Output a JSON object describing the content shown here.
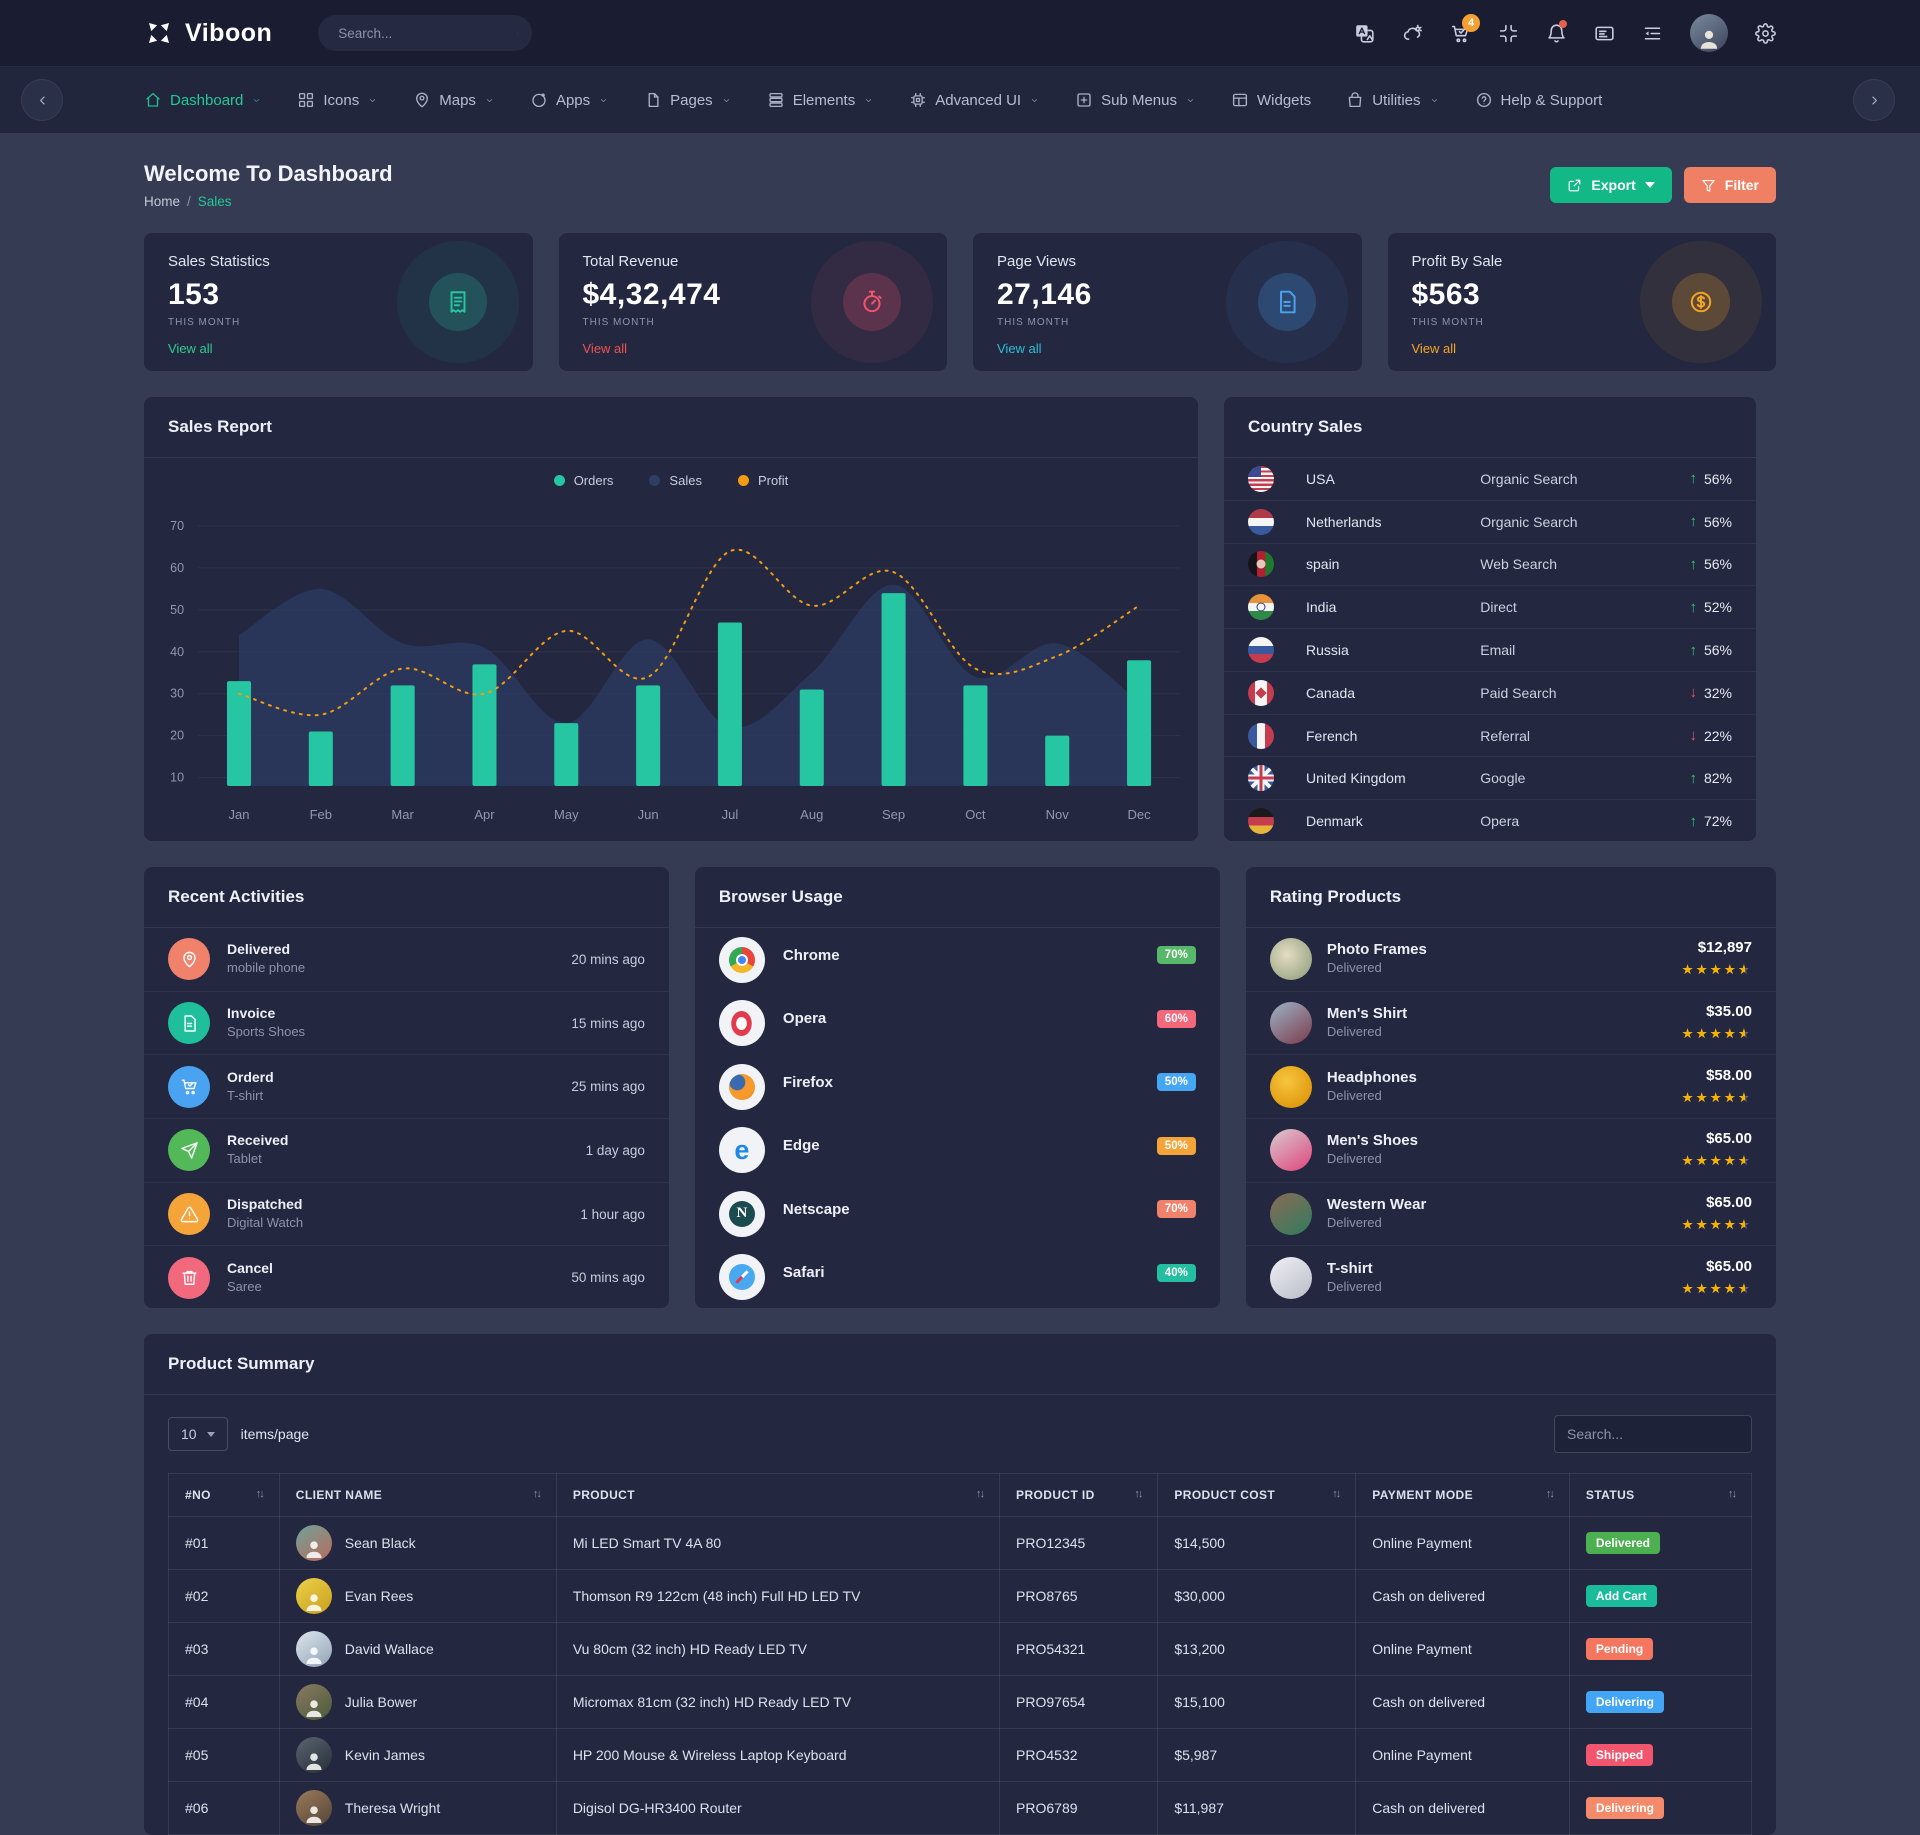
{
  "theme": {
    "up": "#2ecc71",
    "down": "#ef5565"
  },
  "topbar": {
    "brand": "Viboon",
    "search_placeholder": "Search...",
    "cart_badge": "4",
    "icons": [
      "translate-icon",
      "weather-icon",
      "cart-icon",
      "minimize-icon",
      "bell-icon",
      "card-icon",
      "list-icon",
      "avatar",
      "settings-icon"
    ]
  },
  "nav": {
    "items": [
      {
        "label": "Dashboard",
        "icon": "home-icon",
        "active": true,
        "caret": true
      },
      {
        "label": "Icons",
        "icon": "grid-icon",
        "active": false,
        "caret": true
      },
      {
        "label": "Maps",
        "icon": "map-pin-icon",
        "active": false,
        "caret": true
      },
      {
        "label": "Apps",
        "icon": "apps-icon",
        "active": false,
        "caret": true
      },
      {
        "label": "Pages",
        "icon": "pages-icon",
        "active": false,
        "caret": true
      },
      {
        "label": "Elements",
        "icon": "elements-icon",
        "active": false,
        "caret": true
      },
      {
        "label": "Advanced UI",
        "icon": "cpu-icon",
        "active": false,
        "caret": true
      },
      {
        "label": "Sub Menus",
        "icon": "plus-square-icon",
        "active": false,
        "caret": true
      },
      {
        "label": "Widgets",
        "icon": "widgets-icon",
        "active": false,
        "caret": false
      },
      {
        "label": "Utilities",
        "icon": "bag-icon",
        "active": false,
        "caret": true
      },
      {
        "label": "Help & Support",
        "icon": "help-icon",
        "active": false,
        "caret": false
      }
    ]
  },
  "page_header": {
    "title": "Welcome To Dashboard",
    "breadcrumb_home": "Home",
    "breadcrumb_sep": "/",
    "breadcrumb_current": "Sales",
    "export_label": "Export",
    "filter_label": "Filter"
  },
  "stats": [
    {
      "title": "Sales Statistics",
      "value": "153",
      "period": "THIS MONTH",
      "link": "View all",
      "accent": "#26c6a2",
      "link_color": "#2ecc8f",
      "icon": "receipt-icon"
    },
    {
      "title": "Total Revenue",
      "value": "$4,32,474",
      "period": "THIS MONTH",
      "link": "View all",
      "accent": "#f2566e",
      "link_color": "#ef5350",
      "icon": "stopwatch-icon"
    },
    {
      "title": "Page Views",
      "value": "27,146",
      "period": "THIS MONTH",
      "link": "View all",
      "accent": "#4aa3f0",
      "link_color": "#29c0d8",
      "icon": "file-icon"
    },
    {
      "title": "Profit By Sale",
      "value": "$563",
      "period": "THIS MONTH",
      "link": "View all",
      "accent": "#f5a623",
      "link_color": "#f5a623",
      "icon": "dollar-icon"
    }
  ],
  "chart_data": {
    "type": "bar+area+line",
    "title": "Sales Report",
    "categories": [
      "Jan",
      "Feb",
      "Mar",
      "Apr",
      "May",
      "Jun",
      "Jul",
      "Aug",
      "Sep",
      "Oct",
      "Nov",
      "Dec"
    ],
    "series": [
      {
        "name": "Orders",
        "type": "bar",
        "color": "#26c6a2",
        "values": [
          33,
          21,
          32,
          37,
          23,
          32,
          47,
          31,
          54,
          32,
          20,
          38
        ]
      },
      {
        "name": "Sales",
        "type": "area",
        "color": "#2b3a5e",
        "values": [
          44,
          55,
          42,
          41,
          23,
          43,
          22,
          35,
          56,
          34,
          42,
          28
        ]
      },
      {
        "name": "Profit",
        "type": "line",
        "color": "#f39c12",
        "dashed": true,
        "values": [
          30,
          25,
          36,
          30,
          45,
          34,
          64,
          51,
          59,
          36,
          39,
          51
        ]
      }
    ],
    "ylim": [
      10,
      70
    ],
    "yticks": [
      10,
      20,
      30,
      40,
      50,
      60,
      70
    ],
    "grid": true,
    "legend_position": "top"
  },
  "country_sales": {
    "title": "Country Sales",
    "rows": [
      {
        "country": "USA",
        "flag": "usa",
        "source": "Organic Search",
        "trend": "up",
        "percent": "56%"
      },
      {
        "country": "Netherlands",
        "flag": "netherlands",
        "source": "Organic Search",
        "trend": "up",
        "percent": "56%"
      },
      {
        "country": "spain",
        "flag": "spain",
        "source": "Web Search",
        "trend": "up",
        "percent": "56%"
      },
      {
        "country": "India",
        "flag": "india",
        "source": "Direct",
        "trend": "up",
        "percent": "52%"
      },
      {
        "country": "Russia",
        "flag": "russia",
        "source": "Email",
        "trend": "up",
        "percent": "56%"
      },
      {
        "country": "Canada",
        "flag": "canada",
        "source": "Paid Search",
        "trend": "down",
        "percent": "32%"
      },
      {
        "country": "Ferench",
        "flag": "france",
        "source": "Referral",
        "trend": "down",
        "percent": "22%"
      },
      {
        "country": "United Kingdom",
        "flag": "uk",
        "source": "Google",
        "trend": "up",
        "percent": "82%"
      },
      {
        "country": "Denmark",
        "flag": "denmark",
        "source": "Opera",
        "trend": "up",
        "percent": "72%"
      }
    ]
  },
  "recent_activities": {
    "title": "Recent Activities",
    "items": [
      {
        "title": "Delivered",
        "subtitle": "mobile phone",
        "time": "20 mins ago",
        "icon": "map-pin-icon",
        "color": "#f0826c"
      },
      {
        "title": "Invoice",
        "subtitle": "Sports Shoes",
        "time": "15 mins ago",
        "icon": "file-icon",
        "color": "#1fbf9c"
      },
      {
        "title": "Orderd",
        "subtitle": "T-shirt",
        "time": "25 mins ago",
        "icon": "cart-icon",
        "color": "#4aa3f0"
      },
      {
        "title": "Received",
        "subtitle": "Tablet",
        "time": "1 day ago",
        "icon": "send-icon",
        "color": "#53b858"
      },
      {
        "title": "Dispatched",
        "subtitle": "Digital Watch",
        "time": "1 hour ago",
        "icon": "alert-triangle-icon",
        "color": "#f5a43a"
      },
      {
        "title": "Cancel",
        "subtitle": "Saree",
        "time": "50 mins ago",
        "icon": "trash-icon",
        "color": "#f2697e"
      }
    ]
  },
  "browser_usage": {
    "title": "Browser Usage",
    "items": [
      {
        "name": "Chrome",
        "percent": 70,
        "color": "#56b868"
      },
      {
        "name": "Opera",
        "percent": 60,
        "color": "#f4687c"
      },
      {
        "name": "Firefox",
        "percent": 50,
        "color": "#45a6f4"
      },
      {
        "name": "Edge",
        "percent": 50,
        "color": "#f5a43a"
      },
      {
        "name": "Netscape",
        "percent": 70,
        "color": "#f0826c"
      },
      {
        "name": "Safari",
        "percent": 40,
        "color": "#24bfa0"
      }
    ]
  },
  "rating_products": {
    "title": "Rating Products",
    "items": [
      {
        "name": "Photo Frames",
        "status": "Delivered",
        "price": "$12,897",
        "rating": 4.5
      },
      {
        "name": "Men's Shirt",
        "status": "Delivered",
        "price": "$35.00",
        "rating": 4.5
      },
      {
        "name": "Headphones",
        "status": "Delivered",
        "price": "$58.00",
        "rating": 4.5
      },
      {
        "name": "Men's Shoes",
        "status": "Delivered",
        "price": "$65.00",
        "rating": 4.5
      },
      {
        "name": "Western Wear",
        "status": "Delivered",
        "price": "$65.00",
        "rating": 4.5
      },
      {
        "name": "T-shirt",
        "status": "Delivered",
        "price": "$65.00",
        "rating": 4.5
      }
    ]
  },
  "product_summary": {
    "title": "Product Summary",
    "items_per_page": "10",
    "items_label": "items/page",
    "search_placeholder": "Search...",
    "columns": [
      "#NO",
      "CLIENT NAME",
      "PRODUCT",
      "PRODUCT ID",
      "PRODUCT COST",
      "PAYMENT MODE",
      "STATUS"
    ],
    "rows": [
      {
        "no": "#01",
        "client": "Sean Black",
        "product": "Mi LED Smart TV 4A 80",
        "product_id": "PRO12345",
        "cost": "$14,500",
        "payment": "Online Payment",
        "status": "Delivered",
        "status_color": "#4caf50"
      },
      {
        "no": "#02",
        "client": "Evan Rees",
        "product": "Thomson R9 122cm (48 inch) Full HD LED TV",
        "product_id": "PRO8765",
        "cost": "$30,000",
        "payment": "Cash on delivered",
        "status": "Add Cart",
        "status_color": "#1abc9c"
      },
      {
        "no": "#03",
        "client": "David Wallace",
        "product": "Vu 80cm (32 inch) HD Ready LED TV",
        "product_id": "PRO54321",
        "cost": "$13,200",
        "payment": "Online Payment",
        "status": "Pending",
        "status_color": "#f4765f"
      },
      {
        "no": "#04",
        "client": "Julia Bower",
        "product": "Micromax 81cm (32 inch) HD Ready LED TV",
        "product_id": "PRO97654",
        "cost": "$15,100",
        "payment": "Cash on delivered",
        "status": "Delivering",
        "status_color": "#42a5f5"
      },
      {
        "no": "#05",
        "client": "Kevin James",
        "product": "HP 200 Mouse & Wireless Laptop Keyboard",
        "product_id": "PRO4532",
        "cost": "$5,987",
        "payment": "Online Payment",
        "status": "Shipped",
        "status_color": "#f2566e"
      },
      {
        "no": "#06",
        "client": "Theresa Wright",
        "product": "Digisol DG-HR3400 Router",
        "product_id": "PRO6789",
        "cost": "$11,987",
        "payment": "Cash on delivered",
        "status": "Delivering",
        "status_color": "#f58a6a"
      }
    ]
  }
}
